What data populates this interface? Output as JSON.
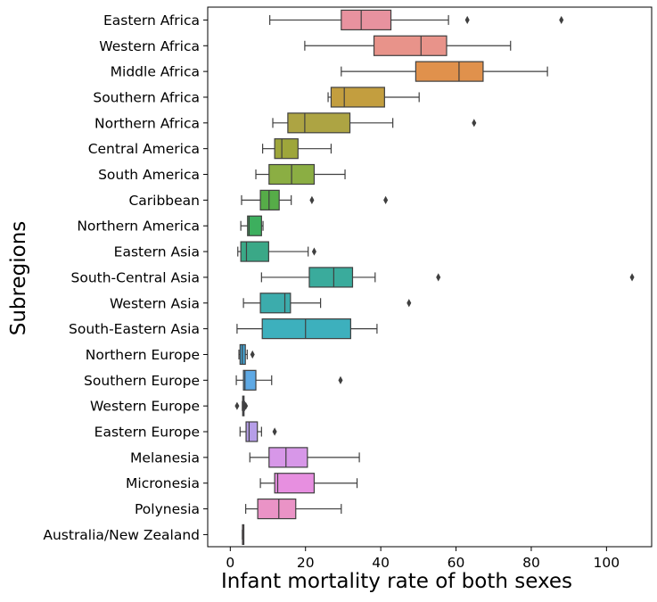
{
  "chart_data": {
    "type": "box",
    "orientation": "horizontal",
    "xlabel": "Infant mortality rate of both sexes",
    "ylabel": "Subregions",
    "xlim": [
      -6,
      112
    ],
    "xticks": [
      0,
      20,
      40,
      60,
      80,
      100
    ],
    "grid": false,
    "legend": "none",
    "categories": [
      {
        "name": "Eastern Africa",
        "color": "#e8929f",
        "whisker_low": 10.5,
        "q1": 29.5,
        "median": 34.8,
        "q3": 42.7,
        "whisker_high": 58.0,
        "outliers": [
          63.0,
          88.0
        ]
      },
      {
        "name": "Western Africa",
        "color": "#e8938a",
        "whisker_low": 19.8,
        "q1": 38.2,
        "median": 50.7,
        "q3": 57.5,
        "whisker_high": 74.5,
        "outliers": []
      },
      {
        "name": "Middle Africa",
        "color": "#e0914c",
        "whisker_low": 29.5,
        "q1": 49.3,
        "median": 60.8,
        "q3": 67.2,
        "whisker_high": 84.3,
        "outliers": []
      },
      {
        "name": "Southern Africa",
        "color": "#c39e3f",
        "whisker_low": 26.0,
        "q1": 26.8,
        "median": 30.3,
        "q3": 41.0,
        "whisker_high": 50.2,
        "outliers": []
      },
      {
        "name": "Northern Africa",
        "color": "#ada443",
        "whisker_low": 11.3,
        "q1": 15.3,
        "median": 19.8,
        "q3": 31.8,
        "whisker_high": 43.2,
        "outliers": [
          64.8
        ]
      },
      {
        "name": "Central America",
        "color": "#9ea63b",
        "whisker_low": 8.6,
        "q1": 11.8,
        "median": 13.7,
        "q3": 18.0,
        "whisker_high": 26.8,
        "outliers": []
      },
      {
        "name": "South America",
        "color": "#8bae43",
        "whisker_low": 6.8,
        "q1": 10.3,
        "median": 16.3,
        "q3": 22.3,
        "whisker_high": 30.5,
        "outliers": []
      },
      {
        "name": "Caribbean",
        "color": "#56ac48",
        "whisker_low": 3.0,
        "q1": 8.0,
        "median": 10.3,
        "q3": 13.0,
        "whisker_high": 16.2,
        "outliers": [
          21.7,
          41.3
        ]
      },
      {
        "name": "Northern America",
        "color": "#3daf5e",
        "whisker_low": 2.8,
        "q1": 4.6,
        "median": 5.0,
        "q3": 8.3,
        "whisker_high": 8.7,
        "outliers": []
      },
      {
        "name": "Eastern Asia",
        "color": "#3aa887",
        "whisker_low": 2.0,
        "q1": 2.8,
        "median": 4.3,
        "q3": 10.2,
        "whisker_high": 20.7,
        "outliers": [
          22.3
        ]
      },
      {
        "name": "South-Central Asia",
        "color": "#3aab9c",
        "whisker_low": 8.3,
        "q1": 21.0,
        "median": 27.5,
        "q3": 32.5,
        "whisker_high": 38.5,
        "outliers": [
          55.3,
          106.8
        ]
      },
      {
        "name": "Western Asia",
        "color": "#3cacac",
        "whisker_low": 3.5,
        "q1": 8.0,
        "median": 14.5,
        "q3": 16.0,
        "whisker_high": 24.0,
        "outliers": [
          47.5
        ]
      },
      {
        "name": "South-Eastern Asia",
        "color": "#3db0bd",
        "whisker_low": 1.8,
        "q1": 8.5,
        "median": 20.0,
        "q3": 32.0,
        "whisker_high": 39.0,
        "outliers": []
      },
      {
        "name": "Northern Europe",
        "color": "#44a5d6",
        "whisker_low": 2.3,
        "q1": 2.6,
        "median": 3.2,
        "q3": 4.0,
        "whisker_high": 4.5,
        "outliers": [
          5.9
        ]
      },
      {
        "name": "Southern Europe",
        "color": "#5ea9e5",
        "whisker_low": 1.6,
        "q1": 3.5,
        "median": 3.9,
        "q3": 6.8,
        "whisker_high": 11.0,
        "outliers": [
          29.3
        ]
      },
      {
        "name": "Western Europe",
        "color": "#949ce8",
        "whisker_low": 3.2,
        "q1": 3.3,
        "median": 3.4,
        "q3": 3.6,
        "whisker_high": 3.8,
        "outliers": [
          1.8,
          4.1
        ]
      },
      {
        "name": "Eastern Europe",
        "color": "#b69ee8",
        "whisker_low": 2.6,
        "q1": 4.2,
        "median": 5.0,
        "q3": 7.2,
        "whisker_high": 8.3,
        "outliers": [
          11.8
        ]
      },
      {
        "name": "Melanesia",
        "color": "#d797e8",
        "whisker_low": 5.2,
        "q1": 10.3,
        "median": 14.8,
        "q3": 20.5,
        "whisker_high": 34.3,
        "outliers": []
      },
      {
        "name": "Micronesia",
        "color": "#e78fe0",
        "whisker_low": 8.0,
        "q1": 11.8,
        "median": 12.6,
        "q3": 22.3,
        "whisker_high": 33.7,
        "outliers": []
      },
      {
        "name": "Polynesia",
        "color": "#ea93c6",
        "whisker_low": 4.1,
        "q1": 7.3,
        "median": 12.9,
        "q3": 17.4,
        "whisker_high": 29.5,
        "outliers": []
      },
      {
        "name": "Australia/New Zealand",
        "color": "#eb97b7",
        "whisker_low": 3.2,
        "q1": 3.25,
        "median": 3.3,
        "q3": 3.45,
        "whisker_high": 3.5,
        "outliers": []
      }
    ]
  }
}
